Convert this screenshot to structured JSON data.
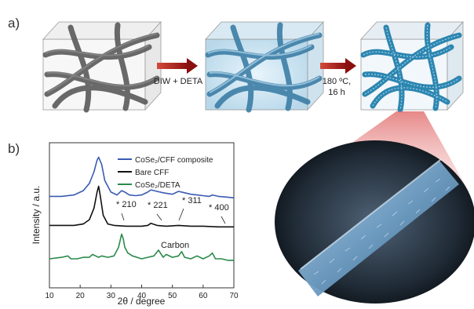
{
  "panels": {
    "a": "a)",
    "b": "b)"
  },
  "schematic": {
    "step1": {
      "label": "DIW + DETA"
    },
    "step2": {
      "line1": "180 ºC,",
      "line2": "16 h"
    }
  },
  "colors": {
    "composite": "#3a5bb3",
    "bare": "#111111",
    "deta": "#2a8a4a",
    "arrow": "#a11515",
    "fiber_bare": "#555555",
    "fiber_soaked": "#3d7ea6",
    "fiber_grown": "#2d86b0"
  },
  "chart_data": {
    "type": "line",
    "xlabel": "2θ / degree",
    "ylabel": "Intensity / a.u.",
    "xlim": [
      10,
      70
    ],
    "xticks": [
      10,
      20,
      30,
      40,
      50,
      60,
      70
    ],
    "legend_position": "top-right",
    "series": [
      {
        "name": "CoSe₂/CFF composite",
        "x": [
          10,
          14,
          18,
          21,
          23,
          24.5,
          25.5,
          26,
          27,
          28,
          30,
          32,
          33.5,
          34.5,
          36,
          38,
          40,
          42,
          43,
          45,
          47,
          50,
          52,
          54,
          56,
          58,
          60,
          62,
          63,
          65,
          68,
          70
        ],
        "values": [
          0.63,
          0.63,
          0.64,
          0.67,
          0.72,
          0.8,
          0.88,
          0.9,
          0.85,
          0.74,
          0.66,
          0.64,
          0.67,
          0.66,
          0.64,
          0.635,
          0.64,
          0.66,
          0.675,
          0.665,
          0.655,
          0.645,
          0.665,
          0.655,
          0.645,
          0.64,
          0.635,
          0.63,
          0.64,
          0.63,
          0.625,
          0.62
        ]
      },
      {
        "name": "Bare CFF",
        "x": [
          10,
          14,
          18,
          21,
          23,
          24.5,
          25.5,
          26,
          26.5,
          27.5,
          29,
          31,
          35,
          40,
          42,
          43,
          45,
          48,
          52,
          56,
          60,
          65,
          70
        ],
        "values": [
          0.43,
          0.43,
          0.43,
          0.44,
          0.47,
          0.55,
          0.66,
          0.7,
          0.64,
          0.5,
          0.44,
          0.43,
          0.425,
          0.425,
          0.43,
          0.445,
          0.43,
          0.425,
          0.43,
          0.425,
          0.425,
          0.42,
          0.42
        ]
      },
      {
        "name": "CoSe₂/DETA",
        "x": [
          10,
          14,
          16,
          17,
          19,
          21,
          23,
          24,
          25,
          26,
          27,
          29,
          31,
          32.5,
          33.5,
          34,
          34.5,
          35.5,
          37,
          40,
          42,
          44,
          45.5,
          47,
          48,
          50,
          52,
          53,
          54,
          56,
          58,
          60,
          62,
          63,
          64,
          66,
          68,
          70
        ],
        "values": [
          0.2,
          0.21,
          0.22,
          0.2,
          0.2,
          0.21,
          0.21,
          0.23,
          0.22,
          0.21,
          0.22,
          0.21,
          0.22,
          0.28,
          0.37,
          0.34,
          0.28,
          0.24,
          0.22,
          0.2,
          0.21,
          0.22,
          0.26,
          0.21,
          0.23,
          0.21,
          0.22,
          0.25,
          0.21,
          0.2,
          0.22,
          0.2,
          0.22,
          0.24,
          0.2,
          0.2,
          0.19,
          0.19
        ]
      }
    ],
    "annotations": [
      {
        "text": "* 210",
        "x": 35
      },
      {
        "text": "* 221",
        "x": 46
      },
      {
        "text": "* 311",
        "x": 53
      },
      {
        "text": "* 400",
        "x": 64
      },
      {
        "text": "Carbon",
        "x": 43
      }
    ]
  }
}
